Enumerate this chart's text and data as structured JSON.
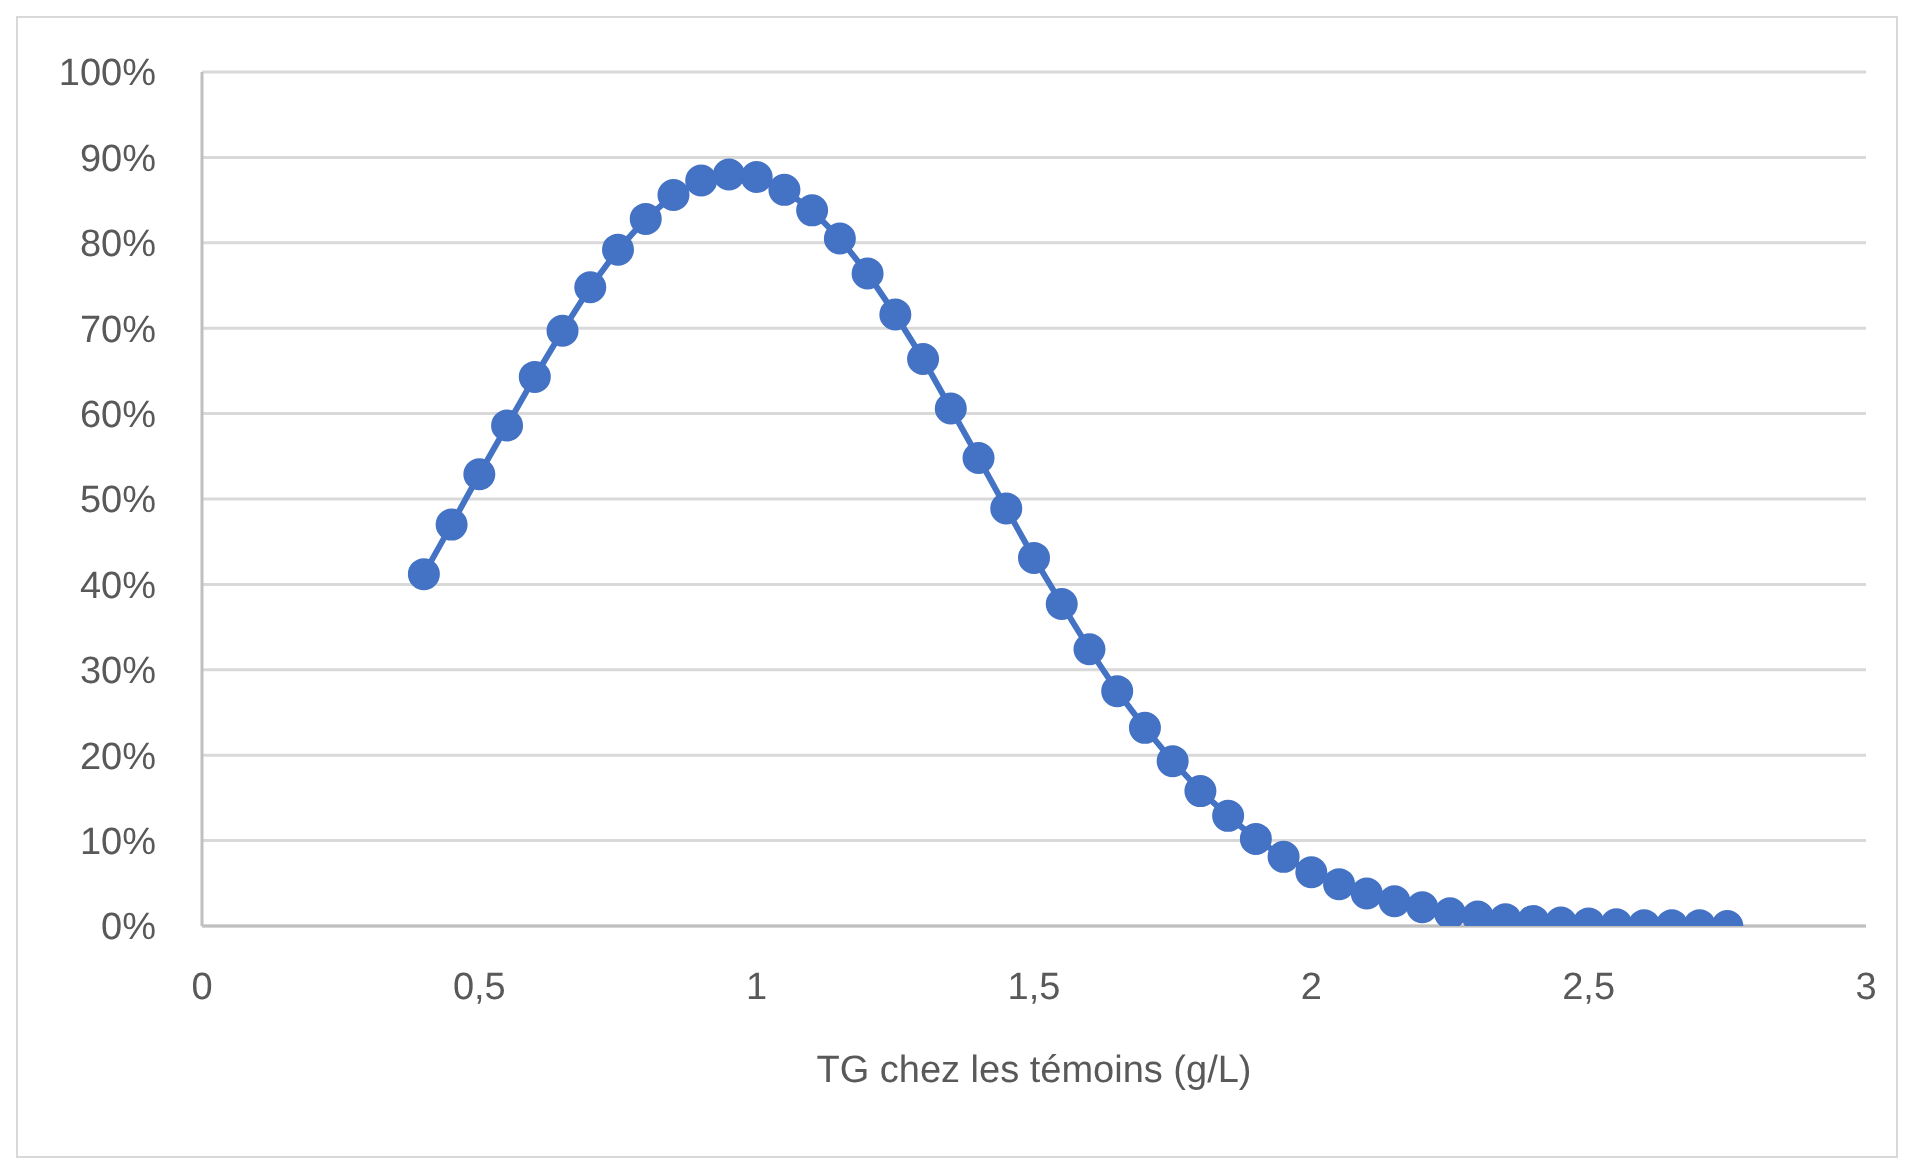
{
  "chart_data": {
    "type": "line",
    "xlabel": "TG chez les témoins (g/L)",
    "x": [
      0.4,
      0.45,
      0.5,
      0.55,
      0.6,
      0.65,
      0.7,
      0.75,
      0.8,
      0.85,
      0.9,
      0.95,
      1.0,
      1.05,
      1.1,
      1.15,
      1.2,
      1.25,
      1.3,
      1.35,
      1.4,
      1.45,
      1.5,
      1.55,
      1.6,
      1.65,
      1.7,
      1.75,
      1.8,
      1.85,
      1.9,
      1.95,
      2.0,
      2.05,
      2.1,
      2.15,
      2.2,
      2.25,
      2.3,
      2.35,
      2.4,
      2.45,
      2.5,
      2.55,
      2.6,
      2.65,
      2.7,
      2.75
    ],
    "series": [
      {
        "color": "#4472c4",
        "values": [
          41.2,
          47.0,
          52.9,
          58.6,
          64.3,
          69.7,
          74.8,
          79.2,
          82.8,
          85.6,
          87.3,
          88.0,
          87.7,
          86.2,
          83.8,
          80.5,
          76.4,
          71.6,
          66.4,
          60.6,
          54.8,
          48.9,
          43.1,
          37.7,
          32.4,
          27.5,
          23.2,
          19.3,
          15.8,
          12.9,
          10.2,
          8.1,
          6.3,
          4.9,
          3.8,
          2.9,
          2.2,
          1.5,
          1.1,
          0.8,
          0.6,
          0.4,
          0.3,
          0.2,
          0.1,
          0.1,
          0.1,
          0.0
        ]
      }
    ],
    "xlim": [
      0,
      3
    ],
    "xticks": [
      0,
      {
        "value": 0.5,
        "label": "0,5"
      },
      1,
      {
        "value": 1.5,
        "label": "1,5"
      },
      2,
      {
        "value": 2.5,
        "label": "2,5"
      },
      3
    ],
    "ylim": [
      0,
      100
    ],
    "yticks": [
      {
        "value": 0,
        "label": "0%"
      },
      {
        "value": 10,
        "label": "10%"
      },
      {
        "value": 20,
        "label": "20%"
      },
      {
        "value": 30,
        "label": "30%"
      },
      {
        "value": 40,
        "label": "40%"
      },
      {
        "value": 50,
        "label": "50%"
      },
      {
        "value": 60,
        "label": "60%"
      },
      {
        "value": 70,
        "label": "70%"
      },
      {
        "value": 80,
        "label": "80%"
      },
      {
        "value": 90,
        "label": "90%"
      },
      {
        "value": 100,
        "label": "100%"
      }
    ],
    "grid": "y",
    "marker": "circle",
    "line_style": "solid"
  }
}
